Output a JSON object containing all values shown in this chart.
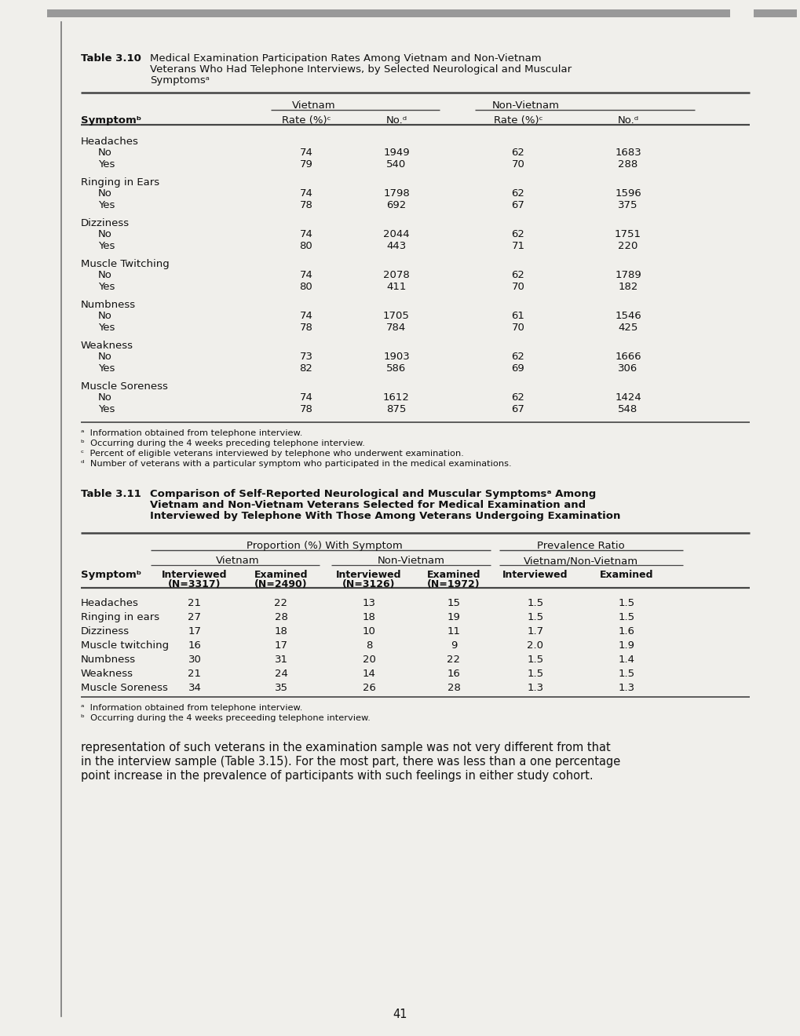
{
  "page_num": "41",
  "bg_color": "#f0efeb",
  "table310": {
    "title_label": "Table 3.10",
    "title_parts": [
      "Medical Examination Participation Rates Among Vietnam and Non-Vietnam",
      "Veterans Who Had Telephone Interviews, by Selected Neurological and Muscular",
      "Symptomsᵃ"
    ],
    "symptom_col": "Symptomᵇ",
    "symptoms": [
      {
        "name": "Headaches",
        "subrows": [
          {
            "label": "No",
            "vr": "74",
            "vn": "1949",
            "nr": "62",
            "nn": "1683"
          },
          {
            "label": "Yes",
            "vr": "79",
            "vn": "540",
            "nr": "70",
            "nn": "288"
          }
        ]
      },
      {
        "name": "Ringing in Ears",
        "subrows": [
          {
            "label": "No",
            "vr": "74",
            "vn": "1798",
            "nr": "62",
            "nn": "1596"
          },
          {
            "label": "Yes",
            "vr": "78",
            "vn": "692",
            "nr": "67",
            "nn": "375"
          }
        ]
      },
      {
        "name": "Dizziness",
        "subrows": [
          {
            "label": "No",
            "vr": "74",
            "vn": "2044",
            "nr": "62",
            "nn": "1751"
          },
          {
            "label": "Yes",
            "vr": "80",
            "vn": "443",
            "nr": "71",
            "nn": "220"
          }
        ]
      },
      {
        "name": "Muscle Twitching",
        "subrows": [
          {
            "label": "No",
            "vr": "74",
            "vn": "2078",
            "nr": "62",
            "nn": "1789"
          },
          {
            "label": "Yes",
            "vr": "80",
            "vn": "411",
            "nr": "70",
            "nn": "182"
          }
        ]
      },
      {
        "name": "Numbness",
        "subrows": [
          {
            "label": "No",
            "vr": "74",
            "vn": "1705",
            "nr": "61",
            "nn": "1546"
          },
          {
            "label": "Yes",
            "vr": "78",
            "vn": "784",
            "nr": "70",
            "nn": "425"
          }
        ]
      },
      {
        "name": "Weakness",
        "subrows": [
          {
            "label": "No",
            "vr": "73",
            "vn": "1903",
            "nr": "62",
            "nn": "1666"
          },
          {
            "label": "Yes",
            "vr": "82",
            "vn": "586",
            "nr": "69",
            "nn": "306"
          }
        ]
      },
      {
        "name": "Muscle Soreness",
        "subrows": [
          {
            "label": "No",
            "vr": "74",
            "vn": "1612",
            "nr": "62",
            "nn": "1424"
          },
          {
            "label": "Yes",
            "vr": "78",
            "vn": "875",
            "nr": "67",
            "nn": "548"
          }
        ]
      }
    ],
    "footnotes": [
      "ᵃ  Information obtained from telephone interview.",
      "ᵇ  Occurring during the 4 weeks preceding telephone interview.",
      "ᶜ  Percent of eligible veterans interviewed by telephone who underwent examination.",
      "ᵈ  Number of veterans with a particular symptom who participated in the medical examinations."
    ]
  },
  "table311": {
    "title_label": "Table 3.11",
    "title_parts": [
      "Comparison of Self-Reported Neurological and Muscular Symptomsᵃ Among",
      "Vietnam and Non-Vietnam Veterans Selected for Medical Examination and",
      "Interviewed by Telephone With Those Among Veterans Undergoing Examination"
    ],
    "symptom_col": "Symptomᵇ",
    "symptoms": [
      {
        "name": "Headaches",
        "iv": "21",
        "ev": "22",
        "in": "13",
        "en": "15",
        "ir": "1.5",
        "er": "1.5"
      },
      {
        "name": "Ringing in ears",
        "iv": "27",
        "ev": "28",
        "in": "18",
        "en": "19",
        "ir": "1.5",
        "er": "1.5"
      },
      {
        "name": "Dizziness",
        "iv": "17",
        "ev": "18",
        "in": "10",
        "en": "11",
        "ir": "1.7",
        "er": "1.6"
      },
      {
        "name": "Muscle twitching",
        "iv": "16",
        "ev": "17",
        "in": "8",
        "en": "9",
        "ir": "2.0",
        "er": "1.9"
      },
      {
        "name": "Numbness",
        "iv": "30",
        "ev": "31",
        "in": "20",
        "en": "22",
        "ir": "1.5",
        "er": "1.4"
      },
      {
        "name": "Weakness",
        "iv": "21",
        "ev": "24",
        "in": "14",
        "en": "16",
        "ir": "1.5",
        "er": "1.5"
      },
      {
        "name": "Muscle Soreness",
        "iv": "34",
        "ev": "35",
        "in": "26",
        "en": "28",
        "ir": "1.3",
        "er": "1.3"
      }
    ],
    "footnotes": [
      "ᵃ  Information obtained from telephone interview.",
      "ᵇ  Occurring during the 4 weeks preceeding telephone interview."
    ]
  },
  "body_text": [
    "representation of such veterans in the examination sample was not very different from that",
    "in the interview sample (Table 3.15). For the most part, there was less than a one percentage",
    "point increase in the prevalence of participants with such feelings in either study cohort."
  ]
}
